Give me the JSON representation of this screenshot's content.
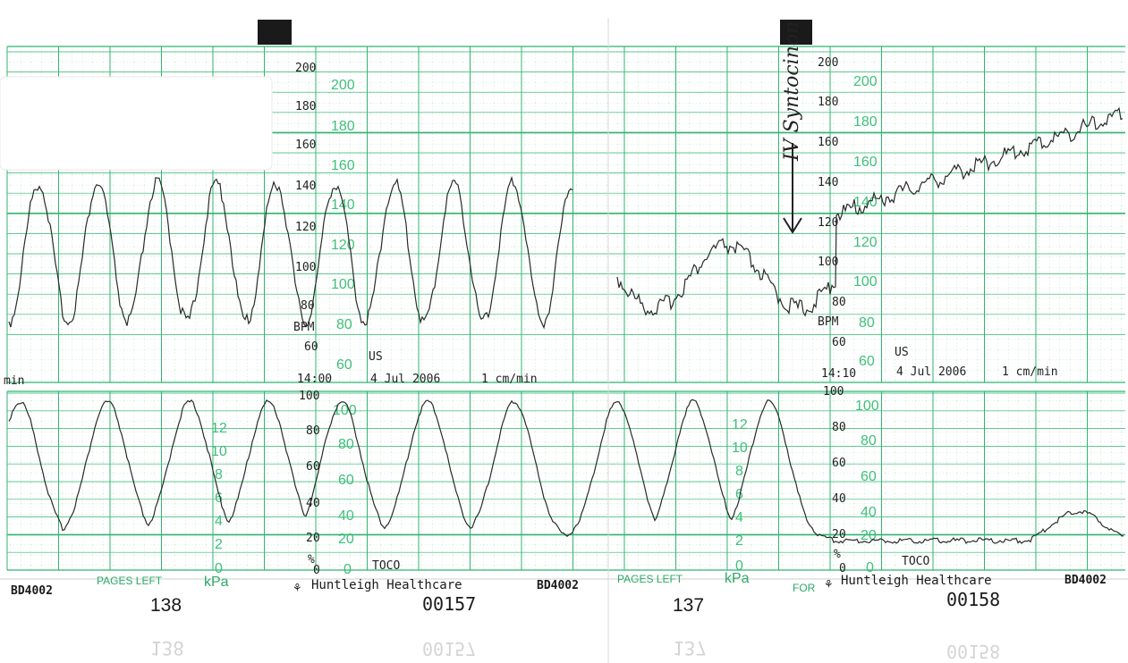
{
  "strip": {
    "colors": {
      "grid_major": "#2fb56f",
      "grid_minor": "#bfe6cf",
      "trace": "#2a2a2a",
      "green_text": "#3fbf7a",
      "paper": "#ffffff"
    },
    "fhr_panel": {
      "axis_unit": "BPM",
      "transducer": "US",
      "scale_values": [
        "200",
        "180",
        "160",
        "140",
        "120",
        "100",
        "80",
        "60"
      ],
      "green_scale_values": [
        "200",
        "180",
        "160",
        "140",
        "120",
        "100",
        "80",
        "60"
      ],
      "page_1_time": "14:00",
      "page_2_time": "14:10",
      "date": "4 Jul 2006",
      "paper_speed": "1 cm/min",
      "left_fragment": "min"
    },
    "toco_panel": {
      "axis_unit": "%",
      "transducer": "TOCO",
      "scale_values": [
        "100",
        "80",
        "60",
        "40",
        "20",
        "0"
      ],
      "green_scale_values": [
        "100",
        "80",
        "60",
        "40",
        "20",
        "0"
      ],
      "kpa_values": [
        "12",
        "10",
        "8",
        "6",
        "4",
        "2",
        "0"
      ],
      "kpa_unit": "kPa"
    },
    "footer": {
      "model_left": "BD4002",
      "pages_left_label": "PAGES LEFT",
      "pages_left_1": "138",
      "manufacturer": "Huntleigh Healthcare",
      "page_number_1": "00157",
      "model_mid": "BD4002",
      "pages_left_2": "137",
      "for_label": "FOR",
      "page_number_2": "00158",
      "model_right": "BD4002"
    },
    "annotation": {
      "handwritten_text": "IV Syntocinon"
    }
  }
}
